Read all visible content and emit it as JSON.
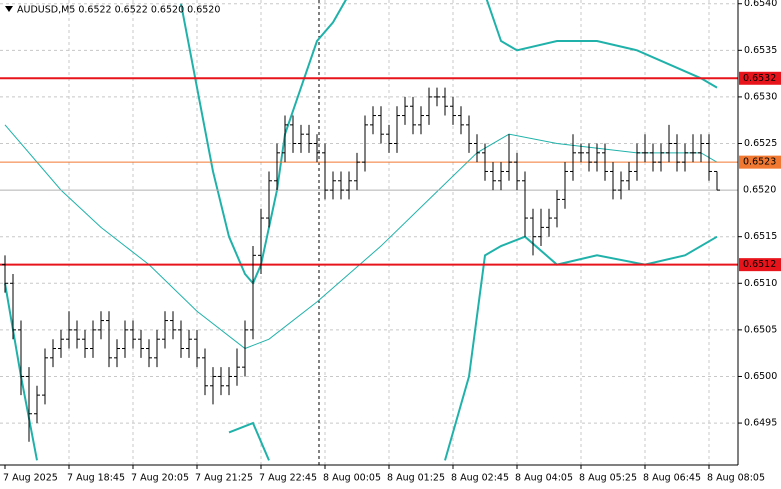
{
  "chart_data": {
    "type": "ohlc",
    "title": "AUDUSD,M5  0.6522 0.6522 0.6520 0.6520",
    "color": "#000000",
    "band_color": "#20b2aa",
    "categories": [
      "7 Aug 2025",
      null,
      null,
      null,
      null,
      null,
      null,
      null,
      "7 Aug 18:45",
      null,
      null,
      null,
      null,
      null,
      null,
      null,
      "7 Aug 20:05",
      null,
      null,
      null,
      null,
      null,
      null,
      null,
      "7 Aug 21:25",
      null,
      null,
      null,
      null,
      null,
      null,
      null,
      "7 Aug 22:45",
      null,
      null,
      null,
      null,
      null,
      null,
      null,
      "8 Aug 00:05",
      null,
      null,
      null,
      null,
      null,
      null,
      null,
      "8 Aug 01:25",
      null,
      null,
      null,
      null,
      null,
      null,
      null,
      "8 Aug 02:45",
      null,
      null,
      null,
      null,
      null,
      null,
      null,
      "8 Aug 04:05",
      null,
      null,
      null,
      null,
      null,
      null,
      null,
      "8 Aug 05:25",
      null,
      null,
      null,
      null,
      null,
      null,
      null,
      "8 Aug 06:45",
      null,
      null,
      null,
      null,
      null,
      null,
      null,
      "8 Aug 08:05",
      null
    ],
    "open": [
      0.6512,
      0.651,
      0.6505,
      0.65,
      0.6496,
      0.6498,
      0.6502,
      0.6503,
      0.6504,
      0.6505,
      0.6504,
      0.6503,
      0.6505,
      0.6506,
      0.6502,
      0.6503,
      0.6505,
      0.6504,
      0.6503,
      0.6502,
      0.6504,
      0.6506,
      0.6505,
      0.6503,
      0.6504,
      0.6502,
      0.6499,
      0.65,
      0.6499,
      0.65,
      0.6501,
      0.6505,
      0.6513,
      0.6517,
      0.6521,
      0.6524,
      0.6527,
      0.6525,
      0.6526,
      0.6525,
      0.6524,
      0.652,
      0.6521,
      0.652,
      0.6521,
      0.6523,
      0.6527,
      0.6528,
      0.6526,
      0.6525,
      0.6528,
      0.6529,
      0.6527,
      0.6528,
      0.653,
      0.653,
      0.6529,
      0.6528,
      0.6527,
      0.6525,
      0.6524,
      0.6522,
      0.6521,
      0.6522,
      0.6523,
      0.6521,
      0.6517,
      0.6515,
      0.6516,
      0.6517,
      0.6519,
      0.6522,
      0.6524,
      0.6524,
      0.6523,
      0.6524,
      0.6522,
      0.652,
      0.6521,
      0.6522,
      0.6524,
      0.6524,
      0.6523,
      0.6524,
      0.6525,
      0.6523,
      0.6524,
      0.6524,
      0.6525,
      0.6522
    ],
    "high": [
      0.6513,
      0.6511,
      0.6506,
      0.6501,
      0.6499,
      0.6503,
      0.6504,
      0.6505,
      0.6507,
      0.6506,
      0.6505,
      0.6506,
      0.6507,
      0.6507,
      0.6504,
      0.6506,
      0.6506,
      0.6505,
      0.6504,
      0.6505,
      0.6507,
      0.6507,
      0.6506,
      0.6505,
      0.6505,
      0.6503,
      0.6501,
      0.6501,
      0.6501,
      0.6503,
      0.6506,
      0.6514,
      0.6518,
      0.6522,
      0.6525,
      0.6528,
      0.6528,
      0.6527,
      0.6527,
      0.6526,
      0.6525,
      0.6522,
      0.6522,
      0.6522,
      0.6524,
      0.6528,
      0.6529,
      0.6529,
      0.6527,
      0.6529,
      0.653,
      0.653,
      0.6529,
      0.6531,
      0.6531,
      0.6531,
      0.653,
      0.6529,
      0.6528,
      0.6526,
      0.6525,
      0.6523,
      0.6523,
      0.6526,
      0.6524,
      0.6522,
      0.6518,
      0.6518,
      0.6518,
      0.652,
      0.6523,
      0.6526,
      0.6525,
      0.6525,
      0.6525,
      0.6525,
      0.6523,
      0.6522,
      0.6523,
      0.6525,
      0.6526,
      0.6525,
      0.6525,
      0.6527,
      0.6526,
      0.6525,
      0.6526,
      0.6526,
      0.6526,
      0.6522
    ],
    "low": [
      0.6509,
      0.6504,
      0.6498,
      0.6493,
      0.6495,
      0.6497,
      0.6501,
      0.6502,
      0.6503,
      0.6503,
      0.6502,
      0.6502,
      0.6504,
      0.6501,
      0.6501,
      0.6502,
      0.6503,
      0.6502,
      0.6501,
      0.6501,
      0.6503,
      0.6504,
      0.6502,
      0.6502,
      0.6501,
      0.6498,
      0.6497,
      0.6498,
      0.6498,
      0.6499,
      0.65,
      0.6504,
      0.6511,
      0.6516,
      0.652,
      0.6523,
      0.6524,
      0.6524,
      0.6524,
      0.6523,
      0.6519,
      0.6519,
      0.6519,
      0.6519,
      0.652,
      0.6522,
      0.6526,
      0.6525,
      0.6524,
      0.6524,
      0.6527,
      0.6526,
      0.6526,
      0.6527,
      0.6529,
      0.6528,
      0.6527,
      0.6526,
      0.6524,
      0.6523,
      0.6521,
      0.652,
      0.652,
      0.6521,
      0.652,
      0.6515,
      0.6513,
      0.6514,
      0.6515,
      0.6516,
      0.6518,
      0.6521,
      0.6523,
      0.6522,
      0.6522,
      0.6521,
      0.6519,
      0.6519,
      0.652,
      0.6521,
      0.6523,
      0.6522,
      0.6522,
      0.6523,
      0.6522,
      0.6522,
      0.6523,
      0.6523,
      0.6521,
      0.652
    ],
    "close": [
      0.651,
      0.6505,
      0.65,
      0.6496,
      0.6498,
      0.6502,
      0.6503,
      0.6504,
      0.6505,
      0.6504,
      0.6503,
      0.6505,
      0.6506,
      0.6502,
      0.6503,
      0.6505,
      0.6504,
      0.6503,
      0.6502,
      0.6504,
      0.6506,
      0.6505,
      0.6503,
      0.6504,
      0.6502,
      0.6499,
      0.65,
      0.6499,
      0.65,
      0.6501,
      0.6505,
      0.6513,
      0.6517,
      0.6521,
      0.6524,
      0.6527,
      0.6525,
      0.6526,
      0.6525,
      0.6524,
      0.652,
      0.6521,
      0.652,
      0.6521,
      0.6523,
      0.6527,
      0.6528,
      0.6526,
      0.6525,
      0.6528,
      0.6529,
      0.6527,
      0.6528,
      0.653,
      0.653,
      0.6529,
      0.6528,
      0.6527,
      0.6525,
      0.6524,
      0.6522,
      0.6521,
      0.6522,
      0.6523,
      0.6521,
      0.6517,
      0.6515,
      0.6516,
      0.6517,
      0.6519,
      0.6522,
      0.6524,
      0.6524,
      0.6523,
      0.6524,
      0.6522,
      0.652,
      0.6521,
      0.6522,
      0.6524,
      0.6524,
      0.6523,
      0.6524,
      0.6525,
      0.6523,
      0.6524,
      0.6524,
      0.6525,
      0.6522,
      0.652
    ],
    "upper_band": {
      "x": [
        22,
        24,
        26,
        28,
        30,
        31,
        32,
        34,
        35,
        37,
        39,
        41,
        43,
        50,
        60,
        62,
        64,
        69,
        74,
        79,
        87,
        89
      ],
      "values": [
        0.654,
        0.6531,
        0.6522,
        0.6515,
        0.6511,
        0.651,
        0.6512,
        0.652,
        0.6526,
        0.6531,
        0.6536,
        0.6538,
        0.6541,
        null,
        0.6541,
        0.6536,
        0.6535,
        0.6536,
        0.6536,
        0.6535,
        0.6532,
        0.6531
      ]
    },
    "lower_band": {
      "x": [
        0,
        2,
        4,
        15,
        28,
        31,
        32,
        33,
        45,
        55,
        58,
        60,
        62,
        65,
        69,
        74,
        80,
        85,
        89
      ],
      "values": [
        0.651,
        0.65,
        0.6491,
        null,
        0.6494,
        0.6495,
        0.6493,
        0.6491,
        null,
        0.6491,
        0.65,
        0.6513,
        0.6514,
        0.6515,
        0.6512,
        0.6513,
        0.6512,
        0.6513,
        0.6515
      ]
    },
    "middle_band": {
      "x": [
        0,
        7,
        12,
        18,
        24,
        30,
        33,
        39,
        47,
        53,
        59,
        63,
        69,
        79,
        87,
        89
      ],
      "values": [
        0.6527,
        0.652,
        0.6516,
        0.6512,
        0.6507,
        0.6503,
        0.6504,
        0.6508,
        0.6514,
        0.6519,
        0.6524,
        0.6526,
        0.6525,
        0.6524,
        0.6524,
        0.6523
      ]
    },
    "hlines": [
      {
        "value": 0.6532,
        "color": "#e8141c"
      },
      {
        "value": 0.6512,
        "color": "#e8141c"
      },
      {
        "value": 0.6523,
        "color": "#f07830"
      }
    ],
    "current_price": {
      "value": 0.652,
      "label": "0.6520"
    },
    "ylim": [
      0.64905,
      0.65404
    ],
    "yticks": [
      {
        "value": 0.654,
        "label": "0.6540"
      },
      0.6535,
      {
        "value": 0.653,
        "label": "0.6530"
      },
      0.6525,
      0.6515,
      {
        "value": 0.651,
        "label": "0.6510"
      },
      0.6505,
      {
        "value": 0.65,
        "label": "0.6500"
      },
      0.6495
    ],
    "grid": true
  }
}
